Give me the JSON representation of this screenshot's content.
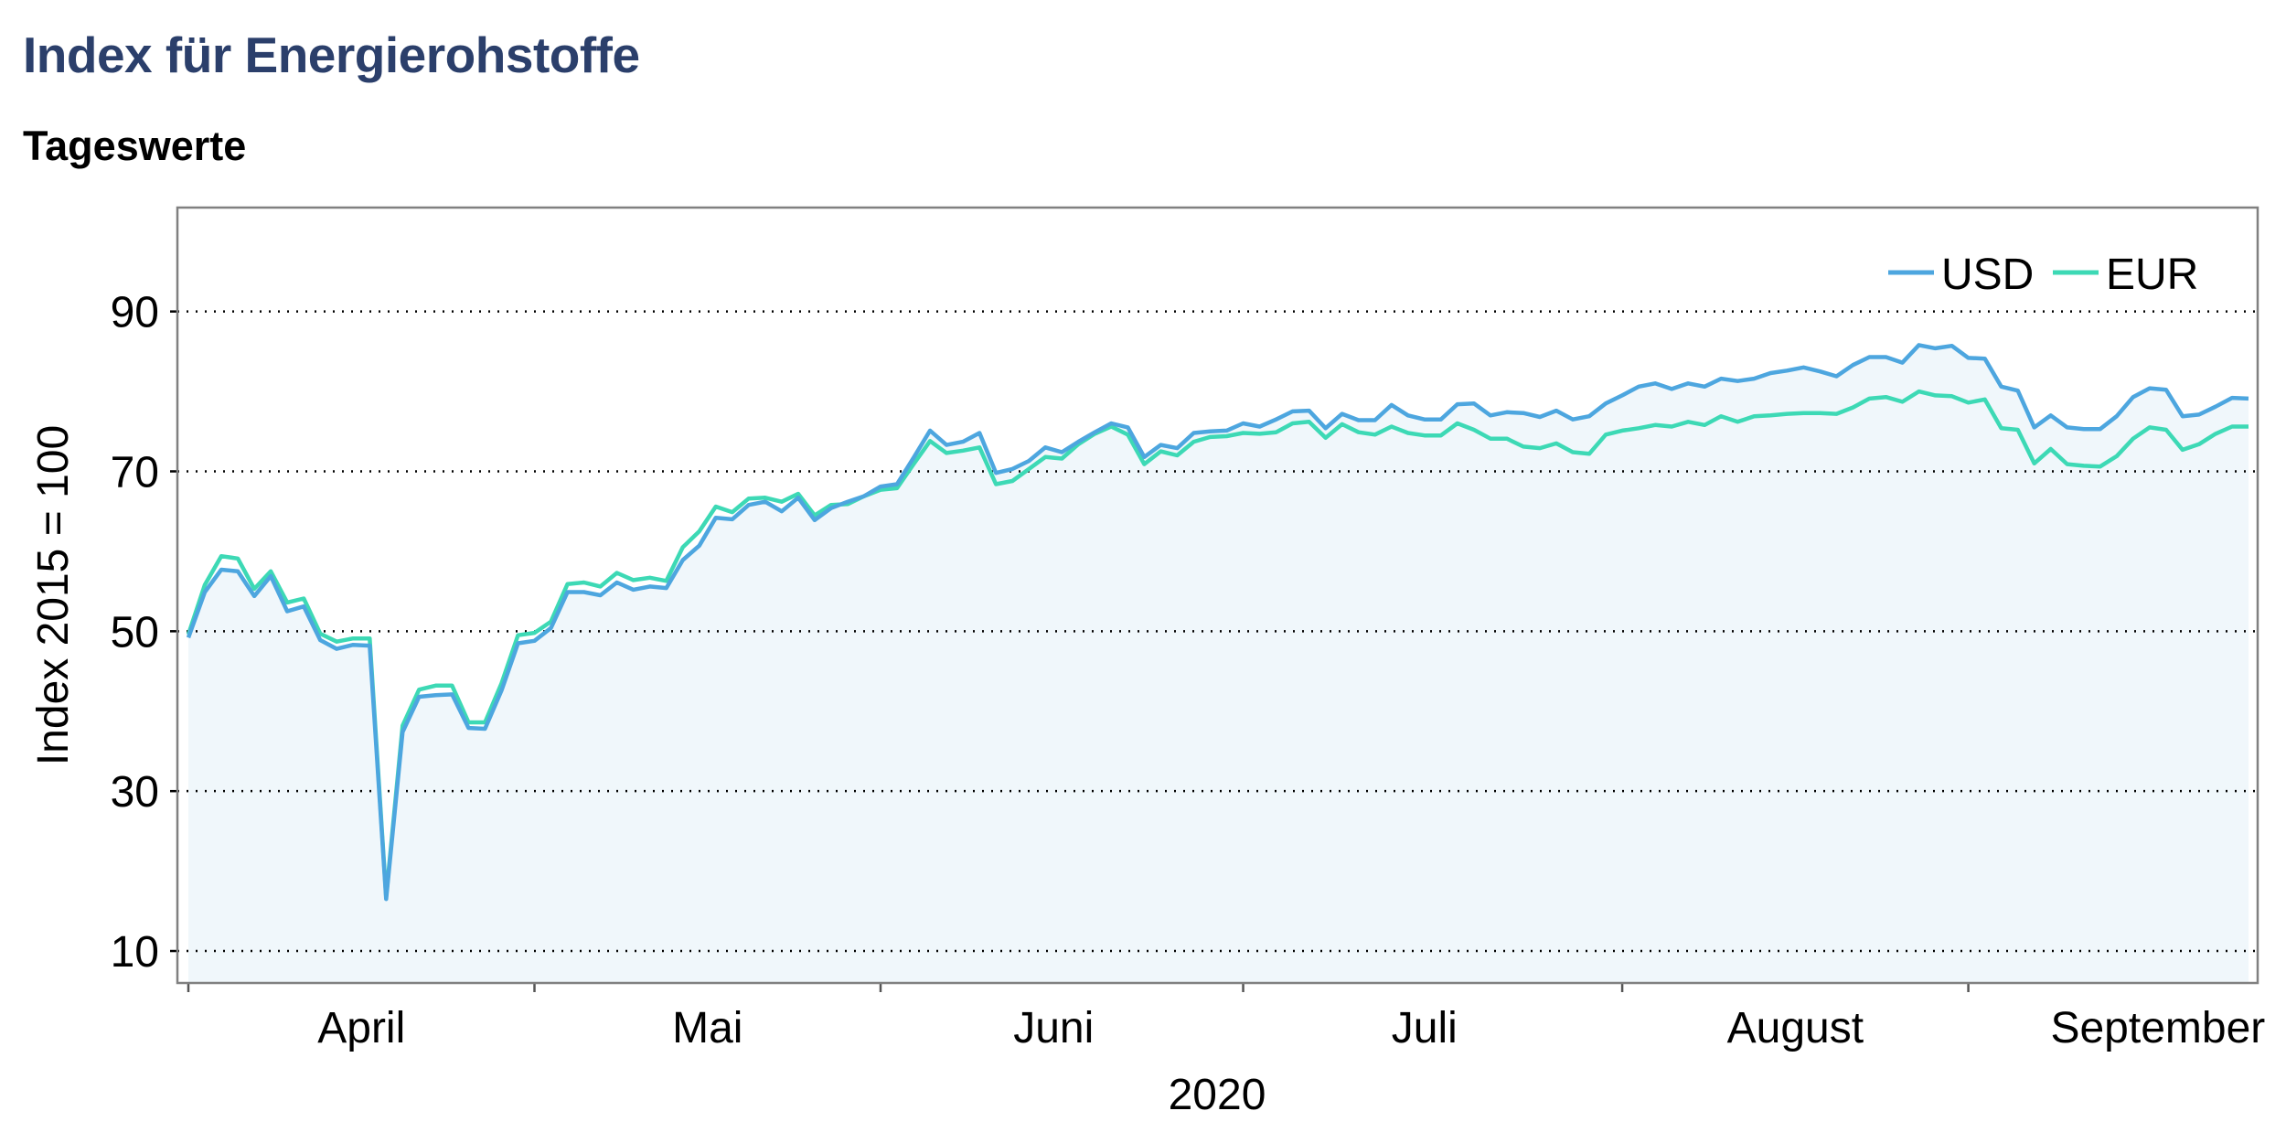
{
  "title": "Index für Energierohstoffe",
  "subtitle": "Tageswerte",
  "colors": {
    "title": "#2b3f6b",
    "usd": "#4da6df",
    "eur": "#3dd9b5",
    "area_fill": "#f0f7fb",
    "frame": "#808080",
    "grid": "#000000"
  },
  "chart_data": {
    "type": "line",
    "title": "Index für Energierohstoffe",
    "subtitle": "Tageswerte",
    "xlabel": "2020",
    "ylabel": "Index 2015 = 100",
    "ylim": [
      6,
      103
    ],
    "yticks": [
      10,
      30,
      50,
      70,
      90
    ],
    "xlim": [
      0,
      130
    ],
    "x_month_labels": [
      {
        "label": "April",
        "x": 10.5
      },
      {
        "label": "Mai",
        "x": 31.5
      },
      {
        "label": "Juni",
        "x": 52.5
      },
      {
        "label": "Juli",
        "x": 75
      },
      {
        "label": "August",
        "x": 97.5
      },
      {
        "label": "September",
        "x": 119.5
      }
    ],
    "x_month_ticks": [
      0,
      21,
      42,
      64,
      87,
      108
    ],
    "grid": "horizontal dotted",
    "legend_position": "top-right",
    "area_under": "USD",
    "series": [
      {
        "name": "USD",
        "color": "#4da6df",
        "values": [
          49.2,
          54.9,
          57.7,
          57.5,
          54.4,
          56.9,
          52.5,
          53.1,
          48.9,
          47.8,
          48.3,
          48.2,
          16.5,
          37.4,
          41.8,
          42.0,
          42.1,
          37.9,
          37.8,
          42.6,
          48.5,
          48.8,
          50.4,
          54.9,
          54.9,
          54.5,
          56.1,
          55.2,
          55.6,
          55.4,
          58.9,
          60.7,
          64.2,
          64.0,
          65.8,
          66.2,
          65.0,
          66.7,
          63.9,
          65.4,
          66.2,
          66.9,
          68.1,
          68.4,
          71.7,
          75.1,
          73.3,
          73.7,
          74.8,
          69.8,
          70.3,
          71.3,
          73.0,
          72.4,
          73.7,
          74.9,
          76.0,
          75.5,
          71.8,
          73.3,
          72.9,
          74.8,
          75.0,
          75.1,
          76.0,
          75.6,
          76.5,
          77.5,
          77.6,
          75.4,
          77.2,
          76.4,
          76.4,
          78.3,
          77.0,
          76.5,
          76.5,
          78.4,
          78.5,
          77.0,
          77.4,
          77.3,
          76.8,
          77.6,
          76.5,
          76.9,
          78.5,
          79.5,
          80.6,
          81.0,
          80.3,
          81.0,
          80.6,
          81.6,
          81.3,
          81.6,
          82.3,
          82.6,
          83.0,
          82.5,
          81.9,
          83.3,
          84.3,
          84.3,
          83.6,
          85.8,
          85.4,
          85.7,
          84.2,
          84.1,
          80.6,
          80.1,
          75.5,
          77.0,
          75.5,
          75.3,
          75.3,
          76.9,
          79.3,
          80.4,
          80.2,
          76.9,
          77.1,
          78.1,
          79.2,
          79.1
        ]
      },
      {
        "name": "EUR",
        "color": "#3dd9b5",
        "values": [
          49.6,
          55.8,
          59.4,
          59.1,
          55.3,
          57.5,
          53.6,
          54.1,
          49.7,
          48.7,
          49.1,
          49.1,
          16.8,
          38.2,
          42.7,
          43.2,
          43.2,
          38.6,
          38.6,
          43.5,
          49.5,
          49.8,
          51.2,
          55.9,
          56.1,
          55.6,
          57.3,
          56.4,
          56.7,
          56.3,
          60.5,
          62.5,
          65.6,
          64.9,
          66.6,
          66.7,
          66.2,
          67.2,
          64.5,
          65.8,
          65.9,
          66.9,
          67.7,
          67.9,
          70.9,
          73.8,
          72.3,
          72.6,
          73.0,
          68.4,
          68.8,
          70.3,
          71.8,
          71.6,
          73.4,
          74.7,
          75.6,
          74.6,
          70.9,
          72.5,
          72.0,
          73.7,
          74.3,
          74.4,
          74.8,
          74.7,
          74.9,
          76.0,
          76.2,
          74.2,
          75.9,
          74.9,
          74.6,
          75.6,
          74.8,
          74.5,
          74.5,
          76.0,
          75.2,
          74.1,
          74.1,
          73.1,
          72.9,
          73.5,
          72.4,
          72.2,
          74.6,
          75.1,
          75.4,
          75.8,
          75.6,
          76.2,
          75.8,
          76.9,
          76.2,
          76.9,
          77.0,
          77.2,
          77.3,
          77.3,
          77.2,
          78.0,
          79.1,
          79.3,
          78.7,
          80.0,
          79.5,
          79.4,
          78.6,
          79.0,
          75.4,
          75.2,
          71.0,
          72.8,
          70.9,
          70.7,
          70.6,
          71.9,
          74.1,
          75.5,
          75.2,
          72.7,
          73.4,
          74.7,
          75.6,
          75.6
        ]
      }
    ]
  }
}
